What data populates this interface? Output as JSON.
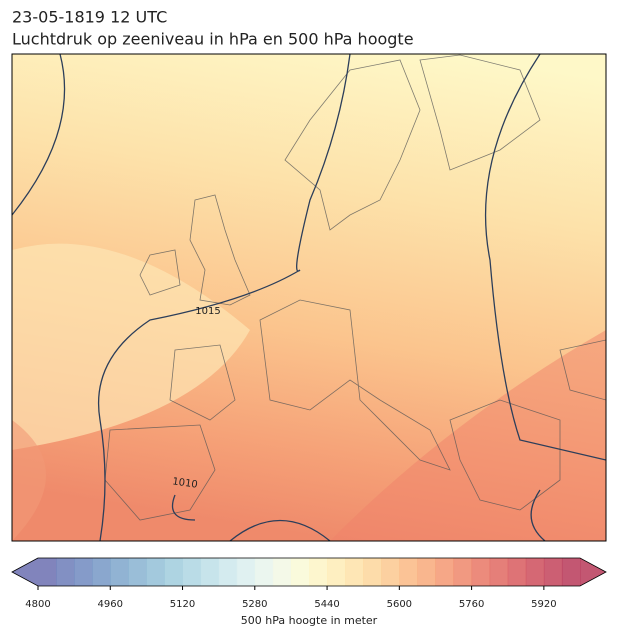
{
  "title": [
    "23-05-1819 12 UTC",
    "Luchtdruk op zeeniveau in hPa en 500 hPa hoogte"
  ],
  "map": {
    "contour_labels": [
      "1015",
      "1010"
    ]
  },
  "colorbar": {
    "label": "500 hPa hoogte in meter",
    "lim": [
      4800,
      6000
    ],
    "ticks": [
      4800,
      4960,
      5120,
      5280,
      5440,
      5600,
      5760,
      5920
    ],
    "colors": [
      "#6b6fb0",
      "#6c7cb8",
      "#708abf",
      "#7698c5",
      "#7ea6cb",
      "#88b3d1",
      "#93c0d7",
      "#a0ccdd",
      "#aed6e3",
      "#bddfe8",
      "#cce7ec",
      "#daeeee",
      "#e7f4ec",
      "#f2f8e4",
      "#f9f9d6",
      "#fdf5c6",
      "#feecb6",
      "#fee2a8",
      "#fdd69b",
      "#fcc88f",
      "#fab984",
      "#f8a97a",
      "#f49872",
      "#ef876b",
      "#e97765",
      "#e16861",
      "#d85a5e",
      "#ce4e5c",
      "#c3435a",
      "#b83a59"
    ]
  }
}
